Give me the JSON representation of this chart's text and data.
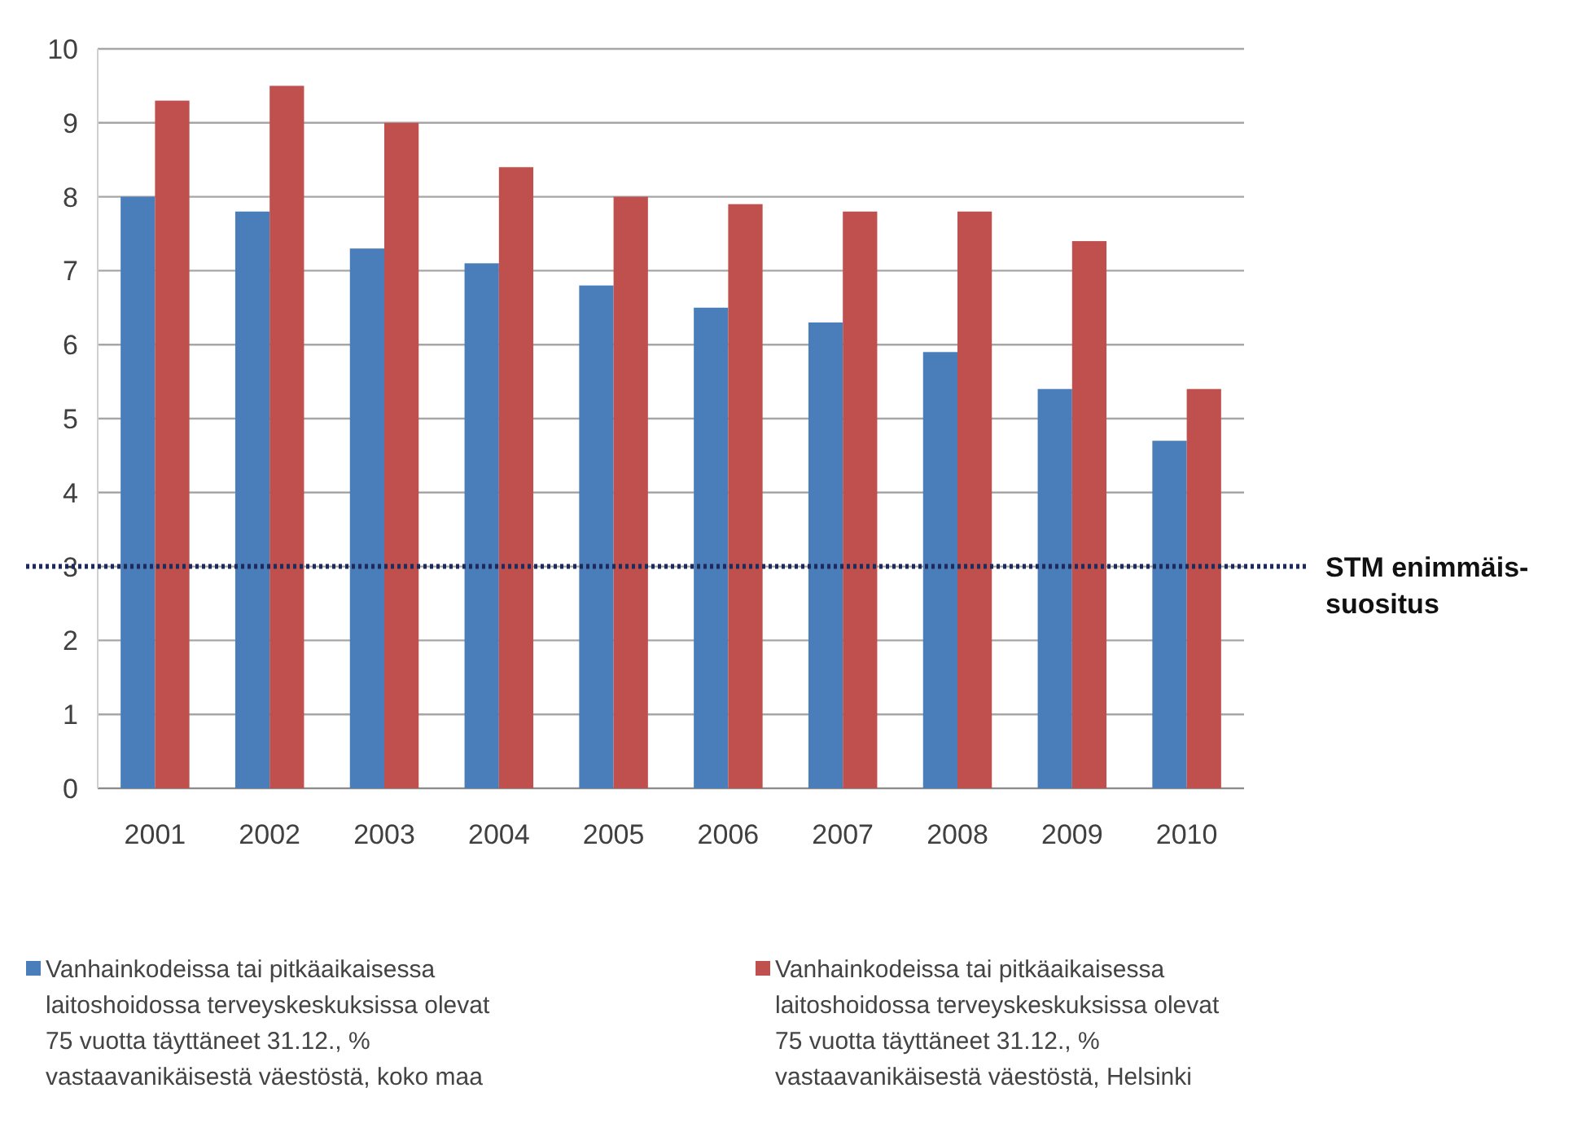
{
  "chart_data": {
    "type": "bar",
    "categories": [
      "2001",
      "2002",
      "2003",
      "2004",
      "2005",
      "2006",
      "2007",
      "2008",
      "2009",
      "2010"
    ],
    "series": [
      {
        "name": "Vanhainkodeissa tai pitkäaikaisessa laitoshoidossa terveyskeskuksissa olevat 75 vuotta täyttäneet 31.12., % vastaavanikäisestä väestöstä, koko maa",
        "color": "#4a7ebb",
        "values": [
          8.0,
          7.8,
          7.3,
          7.1,
          6.8,
          6.5,
          6.3,
          5.9,
          5.4,
          4.7
        ]
      },
      {
        "name": "Vanhainkodeissa tai pitkäaikaisessa laitoshoidossa terveyskeskuksissa olevat 75 vuotta täyttäneet 31.12., % vastaavanikäisestä väestöstä, Helsinki",
        "color": "#c0504d",
        "values": [
          9.3,
          9.5,
          9.0,
          8.4,
          8.0,
          7.9,
          7.8,
          7.8,
          7.4,
          5.4
        ]
      }
    ],
    "ylim": [
      0,
      10
    ],
    "yticks": [
      0,
      1,
      2,
      3,
      4,
      5,
      6,
      7,
      8,
      9,
      10
    ],
    "grid": "y",
    "legend": "bottom",
    "ref_lines": [
      {
        "axis": "y",
        "value": 3,
        "label": "STM enimmäis-\nsuositus",
        "color": "#1f2a5c",
        "line_style": "dotted"
      }
    ]
  }
}
